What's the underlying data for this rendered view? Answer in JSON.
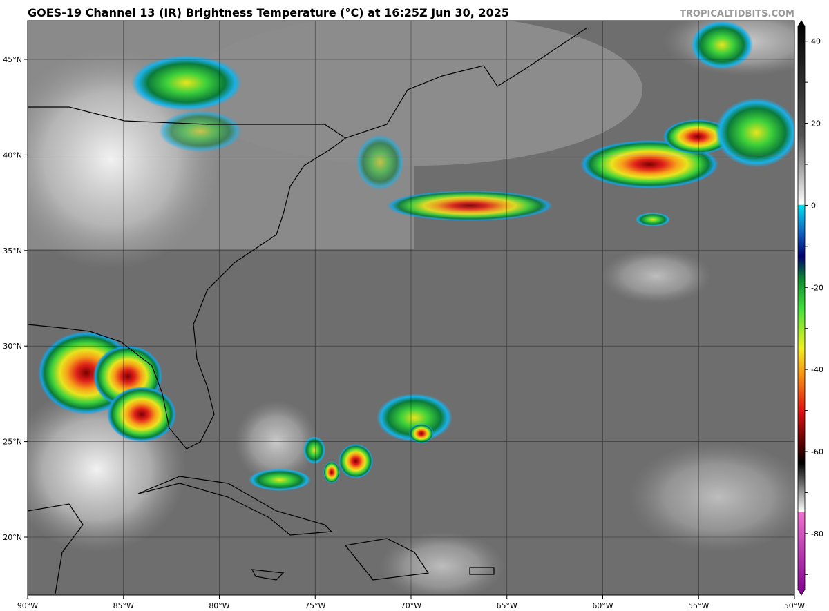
{
  "header": {
    "title": "GOES-19 Channel 13 (IR) Brightness Temperature (°C) at 16:25Z Jun 30, 2025",
    "credit": "TROPICALTIDBITS.COM"
  },
  "map": {
    "longitude_labels": [
      "90°W",
      "85°W",
      "80°W",
      "75°W",
      "70°W",
      "65°W",
      "60°W",
      "55°W",
      "50°W"
    ],
    "latitude_labels": [
      "45°N",
      "40°N",
      "35°N",
      "30°N",
      "25°N",
      "20°N"
    ]
  },
  "colorbar": {
    "range": [
      -95,
      45
    ],
    "ticks": [
      40,
      30,
      20,
      10,
      0,
      -10,
      -20,
      -30,
      -40,
      -50,
      -60,
      -70,
      -80,
      -90
    ]
  }
}
